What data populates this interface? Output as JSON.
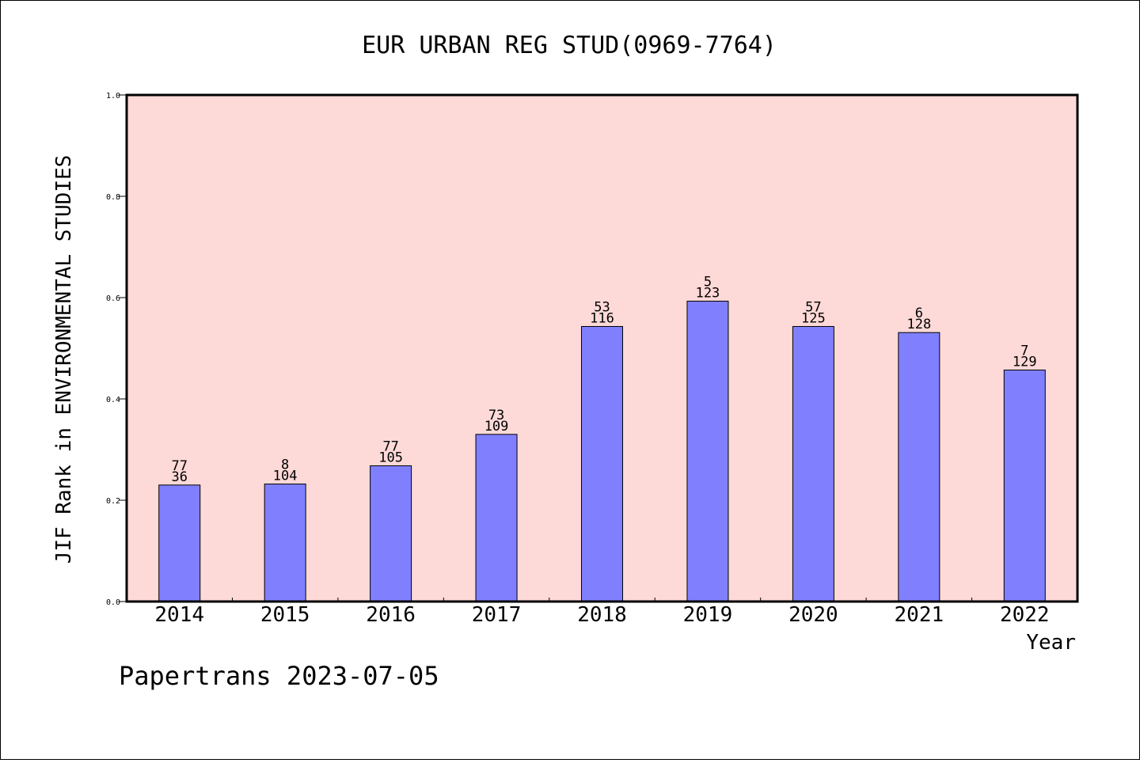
{
  "chart_data": {
    "type": "bar",
    "title": "EUR URBAN REG STUD(0969-7764)",
    "xlabel": "Year",
    "ylabel": "JIF Rank in ENVIRONMENTAL STUDIES",
    "categories": [
      "2014",
      "2015",
      "2016",
      "2017",
      "2018",
      "2019",
      "2020",
      "2021",
      "2022"
    ],
    "values": [
      0.23,
      0.232,
      0.268,
      0.33,
      0.543,
      0.593,
      0.543,
      0.531,
      0.457
    ],
    "rank_labels": [
      "77",
      "8",
      "77",
      "73",
      "53",
      "5",
      "57",
      "6",
      "7"
    ],
    "count_labels": [
      "36",
      "104",
      "105",
      "109",
      "116",
      "123",
      "125",
      "128",
      "129"
    ],
    "ylim": [
      0,
      1.0
    ],
    "yticks": [
      "0.0",
      "0.2",
      "0.4",
      "0.6",
      "0.8",
      "1.0"
    ],
    "grid": false,
    "legend": "none",
    "colors": {
      "plot_background": "#fdd9d7",
      "bar_fill": "#8080ff",
      "bar_stroke": "#000000"
    }
  },
  "footer": {
    "text": "Papertrans 2023-07-05"
  }
}
